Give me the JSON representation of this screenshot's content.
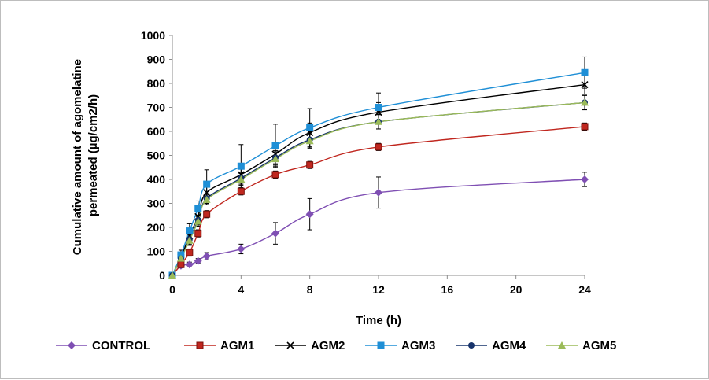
{
  "chart_data": {
    "type": "line",
    "title": "",
    "xlabel": "Time (h)",
    "ylabel_lines": [
      "Cumulative amount of agomelatine",
      "permeated (µg/cm2/h)"
    ],
    "x_tick_labels": [
      "0",
      "4",
      "8",
      "12",
      "16",
      "20",
      "24"
    ],
    "y_tick_labels": [
      "0",
      "100",
      "200",
      "300",
      "400",
      "500",
      "600",
      "700",
      "800",
      "900",
      "1000"
    ],
    "ylim": [
      0,
      1000
    ],
    "x_positions_note": "",
    "x": [
      0,
      0.5,
      1,
      1.5,
      2,
      4,
      6,
      8,
      12,
      24
    ],
    "legend_position": "bottom",
    "grid": false,
    "series": [
      {
        "name": "CONTROL",
        "color": "#7f4fb3",
        "marker": "diamond",
        "values": [
          0,
          40,
          45,
          60,
          80,
          110,
          175,
          255,
          345,
          400
        ],
        "errors": [
          0,
          8,
          10,
          10,
          15,
          20,
          45,
          65,
          65,
          30
        ]
      },
      {
        "name": "AGM1",
        "color": "#c0271f",
        "marker": "square",
        "values": [
          0,
          45,
          95,
          175,
          255,
          350,
          420,
          460,
          535,
          620
        ],
        "errors": [
          0,
          10,
          15,
          15,
          15,
          15,
          15,
          15,
          15,
          15
        ]
      },
      {
        "name": "AGM2",
        "color": "#000000",
        "marker": "x",
        "values": [
          0,
          75,
          165,
          245,
          345,
          420,
          505,
          595,
          680,
          795
        ],
        "errors": [
          0,
          15,
          20,
          25,
          25,
          30,
          40,
          40,
          40,
          40
        ]
      },
      {
        "name": "AGM3",
        "color": "#1f8fd6",
        "marker": "square",
        "values": [
          0,
          85,
          185,
          280,
          380,
          455,
          540,
          615,
          700,
          845
        ],
        "errors": [
          0,
          20,
          30,
          30,
          60,
          90,
          90,
          80,
          60,
          65
        ]
      },
      {
        "name": "AGM4",
        "color": "#17336b",
        "marker": "circle",
        "values": [
          0,
          70,
          150,
          230,
          320,
          405,
          490,
          565,
          640,
          720
        ],
        "errors": [
          0,
          15,
          20,
          20,
          20,
          25,
          30,
          30,
          30,
          30
        ]
      },
      {
        "name": "AGM5",
        "color": "#9bbb59",
        "marker": "triangle",
        "values": [
          0,
          70,
          145,
          225,
          315,
          400,
          485,
          560,
          640,
          720
        ],
        "errors": [
          0,
          15,
          20,
          20,
          20,
          25,
          30,
          30,
          30,
          30
        ]
      }
    ]
  }
}
